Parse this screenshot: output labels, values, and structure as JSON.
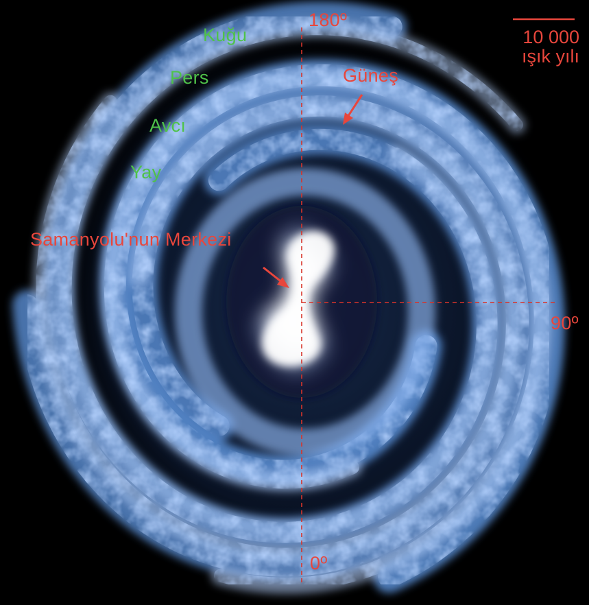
{
  "labels": {
    "deg_180": "180º",
    "deg_90": "90º",
    "deg_0": "0º",
    "sun": "Güneş",
    "center": "Samanyolu'nun Merkezi",
    "arm_cygnus": "Kuğu",
    "arm_perseus": "Pers",
    "arm_orion": "Avcı",
    "arm_sagittarius": "Yay"
  },
  "scale_bar": {
    "value": "10 000",
    "unit": "ışık yılı"
  },
  "colors": {
    "background": "#000000",
    "arm_blue": "#5a8fd6",
    "arm_light": "#b8d4ff",
    "core_white": "#ffffff",
    "label_red": "#e8463c",
    "label_green": "#4fc24a",
    "axis_red": "#d8342a"
  }
}
